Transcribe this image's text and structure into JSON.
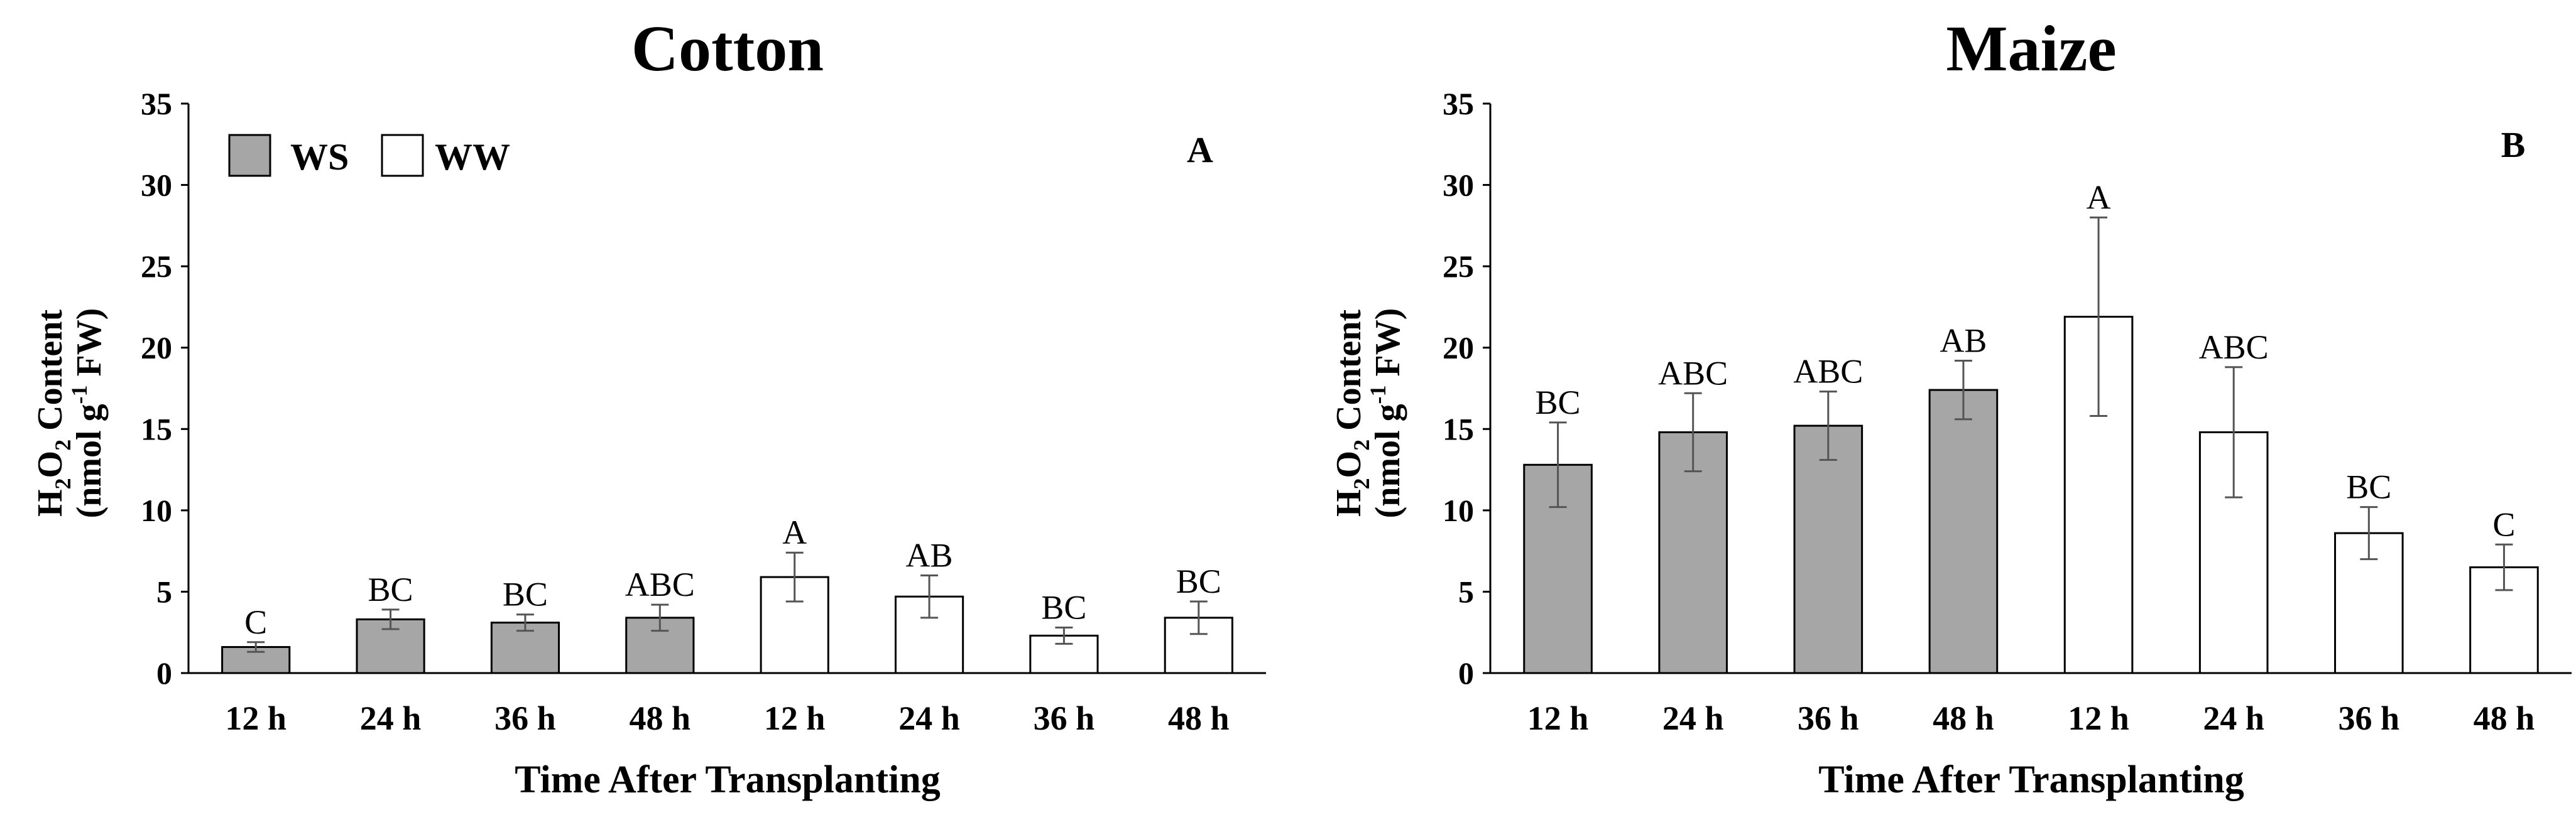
{
  "chart_data": [
    {
      "type": "bar",
      "title": "Cotton",
      "panel_label": "A",
      "xlabel": "Time After Transplanting",
      "ylabel_line1": "Content",
      "ylabel_line2_prefix": "(nmol g",
      "ylabel_line2_sup": "-1",
      "ylabel_line2_suffix": " FW)",
      "ylabel_chem": {
        "H": "H",
        "sub1": "2",
        "O": "O",
        "sub2": "2"
      },
      "ylim": [
        0,
        35
      ],
      "yticks": [
        "0",
        "5",
        "10",
        "15",
        "20",
        "25",
        "30",
        "35"
      ],
      "categories": [
        "12 h",
        "24 h",
        "36 h",
        "48 h",
        "12 h",
        "24 h",
        "36 h",
        "48 h"
      ],
      "values": [
        1.6,
        3.3,
        3.1,
        3.4,
        5.9,
        4.7,
        2.3,
        3.4
      ],
      "errors": [
        0.3,
        0.6,
        0.5,
        0.8,
        1.5,
        1.3,
        0.5,
        1.0
      ],
      "groups": [
        "WS",
        "WS",
        "WS",
        "WS",
        "WW",
        "WW",
        "WW",
        "WW"
      ],
      "significance": [
        "C",
        "BC",
        "BC",
        "ABC",
        "A",
        "AB",
        "BC",
        "BC"
      ],
      "legend": [
        {
          "label": "WS",
          "color": "#a6a6a6"
        },
        {
          "label": "WW",
          "color": "#ffffff"
        }
      ]
    },
    {
      "type": "bar",
      "title": "Maize",
      "panel_label": "B",
      "xlabel": "Time After Transplanting",
      "ylabel_line1": "Content",
      "ylabel_line2_prefix": "(nmol g",
      "ylabel_line2_sup": "-1",
      "ylabel_line2_suffix": " FW)",
      "ylabel_chem": {
        "H": "H",
        "sub1": "2",
        "O": "O",
        "sub2": "2"
      },
      "ylim": [
        0,
        35
      ],
      "yticks": [
        "0",
        "5",
        "10",
        "15",
        "20",
        "25",
        "30",
        "35"
      ],
      "categories": [
        "12 h",
        "24 h",
        "36 h",
        "48 h",
        "12 h",
        "24 h",
        "36 h",
        "48 h"
      ],
      "values": [
        12.8,
        14.8,
        15.2,
        17.4,
        21.9,
        14.8,
        8.6,
        6.5
      ],
      "errors": [
        2.6,
        2.4,
        2.1,
        1.8,
        6.1,
        4.0,
        1.6,
        1.4
      ],
      "groups": [
        "WS",
        "WS",
        "WS",
        "WS",
        "WW",
        "WW",
        "WW",
        "WW"
      ],
      "significance": [
        "BC",
        "ABC",
        "ABC",
        "AB",
        "A",
        "ABC",
        "BC",
        "C"
      ]
    }
  ],
  "colors": {
    "WS": "#a6a6a6",
    "WW": "#ffffff",
    "axis": "#000000",
    "error_bar": "#555555"
  }
}
